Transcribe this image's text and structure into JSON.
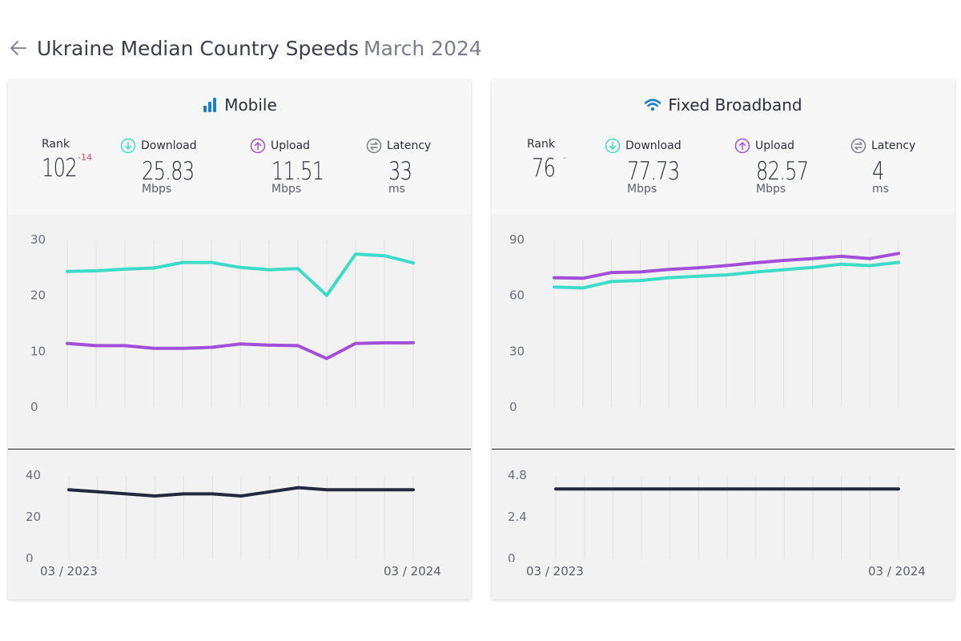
{
  "header": {
    "title": "Ukraine Median Country Speeds",
    "date": "March 2024"
  },
  "mobile": {
    "title": "Mobile",
    "rank_label": "Rank",
    "rank": "102",
    "rank_change": "-14",
    "download_label": "Download",
    "download": "25.83",
    "download_unit": "Mbps",
    "upload_label": "Upload",
    "upload": "11.51",
    "upload_unit": "Mbps",
    "latency_label": "Latency",
    "latency": "33",
    "latency_unit": "ms",
    "start_date": "03 / 2023",
    "end_date": "03 / 2024"
  },
  "fixed": {
    "title": "Fixed Broadband",
    "rank_label": "Rank",
    "rank": "76",
    "rank_change": "-",
    "download_label": "Download",
    "download": "77.73",
    "download_unit": "Mbps",
    "upload_label": "Upload",
    "upload": "82.57",
    "upload_unit": "Mbps",
    "latency_label": "Latency",
    "latency": "4",
    "latency_unit": "ms",
    "start_date": "03 / 2023",
    "end_date": "03 / 2024"
  },
  "colors": {
    "download": "#3ddcc8",
    "upload": "#a24fd8",
    "latency": "#232a3d",
    "accent": "#1a7fd0"
  },
  "chart_data": [
    {
      "type": "line",
      "x": [
        "03/2023",
        "04/2023",
        "05/2023",
        "06/2023",
        "07/2023",
        "08/2023",
        "09/2023",
        "10/2023",
        "11/2023",
        "12/2023",
        "01/2024",
        "02/2024",
        "03/2024"
      ],
      "ylim": [
        0,
        30
      ],
      "yticks": [
        0,
        10,
        20,
        30
      ],
      "series": [
        {
          "name": "Download",
          "values": [
            24.3,
            24.4,
            24.7,
            24.9,
            25.9,
            25.9,
            25.0,
            24.6,
            24.8,
            20.0,
            27.4,
            27.1,
            25.83
          ]
        },
        {
          "name": "Upload",
          "values": [
            11.4,
            11.0,
            11.0,
            10.5,
            10.5,
            10.7,
            11.3,
            11.1,
            11.0,
            8.7,
            11.4,
            11.5,
            11.51
          ]
        }
      ]
    },
    {
      "type": "line",
      "x": [
        "03/2023",
        "04/2023",
        "05/2023",
        "06/2023",
        "07/2023",
        "08/2023",
        "09/2023",
        "10/2023",
        "11/2023",
        "12/2023",
        "01/2024",
        "02/2024",
        "03/2024"
      ],
      "ylim": [
        0,
        40
      ],
      "yticks": [
        0,
        20,
        40
      ],
      "series": [
        {
          "name": "Latency",
          "values": [
            33,
            32,
            31,
            30,
            31,
            31,
            30,
            32,
            34,
            33,
            33,
            33,
            33
          ]
        }
      ]
    },
    {
      "type": "line",
      "x": [
        "03/2023",
        "04/2023",
        "05/2023",
        "06/2023",
        "07/2023",
        "08/2023",
        "09/2023",
        "10/2023",
        "11/2023",
        "12/2023",
        "01/2024",
        "02/2024",
        "03/2024"
      ],
      "ylim": [
        0,
        90
      ],
      "yticks": [
        0,
        30,
        60,
        90
      ],
      "series": [
        {
          "name": "Download",
          "values": [
            64.5,
            64.0,
            67.5,
            68.0,
            69.5,
            70.3,
            71.0,
            72.5,
            73.8,
            75.0,
            76.8,
            76.0,
            77.73
          ]
        },
        {
          "name": "Upload",
          "values": [
            69.5,
            69.2,
            72.3,
            72.6,
            74.0,
            74.8,
            76.0,
            77.5,
            78.8,
            79.8,
            81.0,
            79.8,
            82.57
          ]
        }
      ]
    },
    {
      "type": "line",
      "x": [
        "03/2023",
        "04/2023",
        "05/2023",
        "06/2023",
        "07/2023",
        "08/2023",
        "09/2023",
        "10/2023",
        "11/2023",
        "12/2023",
        "01/2024",
        "02/2024",
        "03/2024"
      ],
      "ylim": [
        0,
        4.8
      ],
      "yticks": [
        0,
        2.4,
        4.8
      ],
      "series": [
        {
          "name": "Latency",
          "values": [
            4,
            4,
            4,
            4,
            4,
            4,
            4,
            4,
            4,
            4,
            4,
            4,
            4
          ]
        }
      ]
    }
  ]
}
